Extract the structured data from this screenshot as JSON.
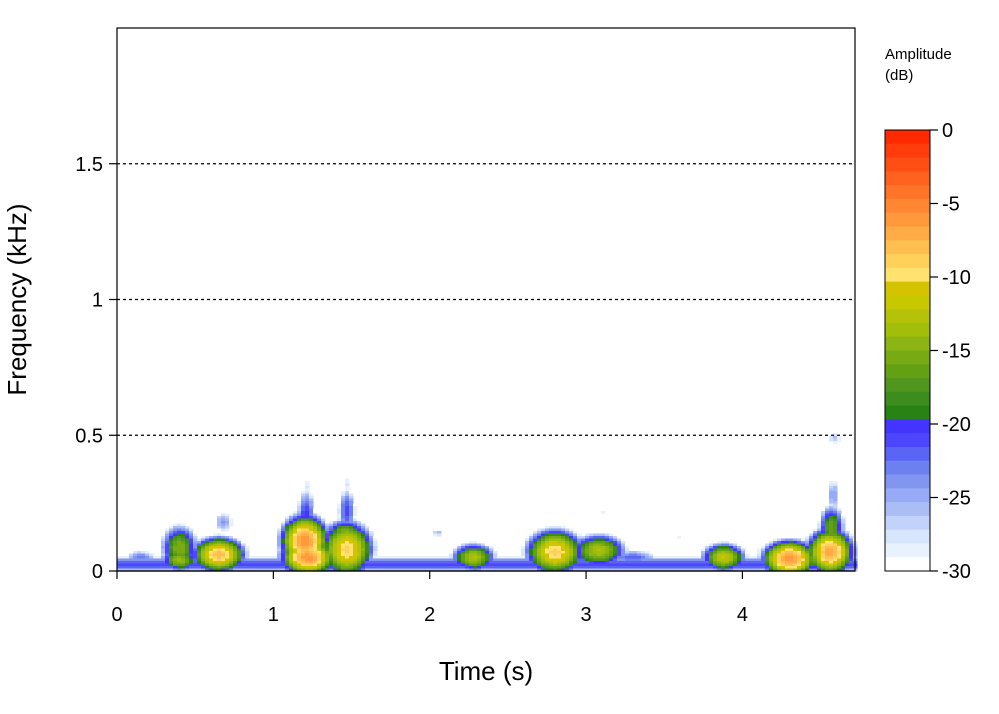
{
  "chart_data": {
    "type": "heatmap",
    "title": "",
    "xlabel": "Time (s)",
    "ylabel": "Frequency (kHz)",
    "xlim": [
      0,
      4.72
    ],
    "ylim": [
      0,
      2.0
    ],
    "x_ticks": [
      {
        "value": 0,
        "label": "0"
      },
      {
        "value": 1,
        "label": "1"
      },
      {
        "value": 2,
        "label": "2"
      },
      {
        "value": 3,
        "label": "3"
      },
      {
        "value": 4,
        "label": "4"
      }
    ],
    "y_ticks": [
      {
        "value": 0,
        "label": "0"
      },
      {
        "value": 0.5,
        "label": "0.5"
      },
      {
        "value": 1,
        "label": "1"
      },
      {
        "value": 1.5,
        "label": "1.5"
      }
    ],
    "grid": {
      "horizontal_dotted_at": [
        0.5,
        1.0,
        1.5
      ]
    },
    "colorbar": {
      "title_line1": "Amplitude",
      "title_line2": "(dB)",
      "range": [
        -30,
        0
      ],
      "ticks": [
        {
          "value": 0,
          "label": "0"
        },
        {
          "value": -5,
          "label": "-5"
        },
        {
          "value": -10,
          "label": "-10"
        },
        {
          "value": -15,
          "label": "-15"
        },
        {
          "value": -20,
          "label": "-20"
        },
        {
          "value": -25,
          "label": "-25"
        },
        {
          "value": -30,
          "label": "-30"
        }
      ],
      "colors_top_to_bottom": [
        "#ff2a00",
        "#ff3c0a",
        "#ff4f14",
        "#ff611e",
        "#ff7428",
        "#ff8632",
        "#ff993c",
        "#ffab46",
        "#ffbe50",
        "#ffd05a",
        "#ffe36e",
        "#d4c300",
        "#c8c800",
        "#b4c30a",
        "#a0be0a",
        "#8cb414",
        "#78aa14",
        "#64a014",
        "#50961e",
        "#3c8c1e",
        "#288214",
        "#4434ff",
        "#4d46ff",
        "#5a64f5",
        "#6c80f0",
        "#8296f0",
        "#96aaf5",
        "#aabef5",
        "#c3d2fa",
        "#d7e6fc",
        "#e8f2fc",
        "#ffffff"
      ]
    },
    "blobs": [
      {
        "t": 0.4,
        "f": 0.085,
        "dt": 0.07,
        "df": 0.05,
        "db": -15
      },
      {
        "t": 0.4,
        "f": 0.04,
        "dt": 0.07,
        "df": 0.025,
        "db": -14
      },
      {
        "t": 0.65,
        "f": 0.06,
        "dt": 0.09,
        "df": 0.035,
        "db": -8
      },
      {
        "t": 0.68,
        "f": 0.18,
        "dt": 0.05,
        "df": 0.03,
        "db": -24
      },
      {
        "t": 0.15,
        "f": 0.05,
        "dt": 0.08,
        "df": 0.02,
        "db": -23
      },
      {
        "t": 1.2,
        "f": 0.11,
        "dt": 0.08,
        "df": 0.05,
        "db": -6
      },
      {
        "t": 1.22,
        "f": 0.05,
        "dt": 0.09,
        "df": 0.035,
        "db": -6
      },
      {
        "t": 1.21,
        "f": 0.2,
        "dt": 0.04,
        "df": 0.07,
        "db": -20
      },
      {
        "t": 1.47,
        "f": 0.08,
        "dt": 0.09,
        "df": 0.055,
        "db": -9
      },
      {
        "t": 1.47,
        "f": 0.22,
        "dt": 0.04,
        "df": 0.06,
        "db": -21
      },
      {
        "t": 1.46,
        "f": 0.14,
        "dt": 0.08,
        "df": 0.03,
        "db": -15
      },
      {
        "t": 1.47,
        "f": 0.32,
        "dt": 0.03,
        "df": 0.04,
        "db": -28
      },
      {
        "t": 1.22,
        "f": 0.31,
        "dt": 0.03,
        "df": 0.04,
        "db": -28
      },
      {
        "t": 2.28,
        "f": 0.05,
        "dt": 0.08,
        "df": 0.03,
        "db": -13
      },
      {
        "t": 2.05,
        "f": 0.14,
        "dt": 0.03,
        "df": 0.01,
        "db": -25
      },
      {
        "t": 2.8,
        "f": 0.07,
        "dt": 0.1,
        "df": 0.045,
        "db": -9
      },
      {
        "t": 2.78,
        "f": 0.12,
        "dt": 0.1,
        "df": 0.03,
        "db": -20
      },
      {
        "t": 3.08,
        "f": 0.075,
        "dt": 0.1,
        "df": 0.035,
        "db": -13
      },
      {
        "t": 3.3,
        "f": 0.05,
        "dt": 0.12,
        "df": 0.02,
        "db": -22
      },
      {
        "t": 3.1,
        "f": 0.22,
        "dt": 0.04,
        "df": 0.01,
        "db": -28
      },
      {
        "t": 3.6,
        "f": 0.12,
        "dt": 0.05,
        "df": 0.01,
        "db": -28
      },
      {
        "t": 3.88,
        "f": 0.05,
        "dt": 0.08,
        "df": 0.03,
        "db": -12
      },
      {
        "t": 4.3,
        "f": 0.045,
        "dt": 0.09,
        "df": 0.035,
        "db": -6
      },
      {
        "t": 4.56,
        "f": 0.07,
        "dt": 0.08,
        "df": 0.045,
        "db": -7
      },
      {
        "t": 4.57,
        "f": 0.16,
        "dt": 0.05,
        "df": 0.05,
        "db": -16
      },
      {
        "t": 4.58,
        "f": 0.28,
        "dt": 0.03,
        "df": 0.05,
        "db": -24
      },
      {
        "t": 4.59,
        "f": 0.49,
        "dt": 0.04,
        "df": 0.02,
        "db": -26
      },
      {
        "t": 4.13,
        "f": 0.08,
        "dt": 0.05,
        "df": 0.01,
        "db": -27
      }
    ],
    "baseline_band": {
      "f": 0.025,
      "df": 0.02,
      "db": -21
    }
  }
}
